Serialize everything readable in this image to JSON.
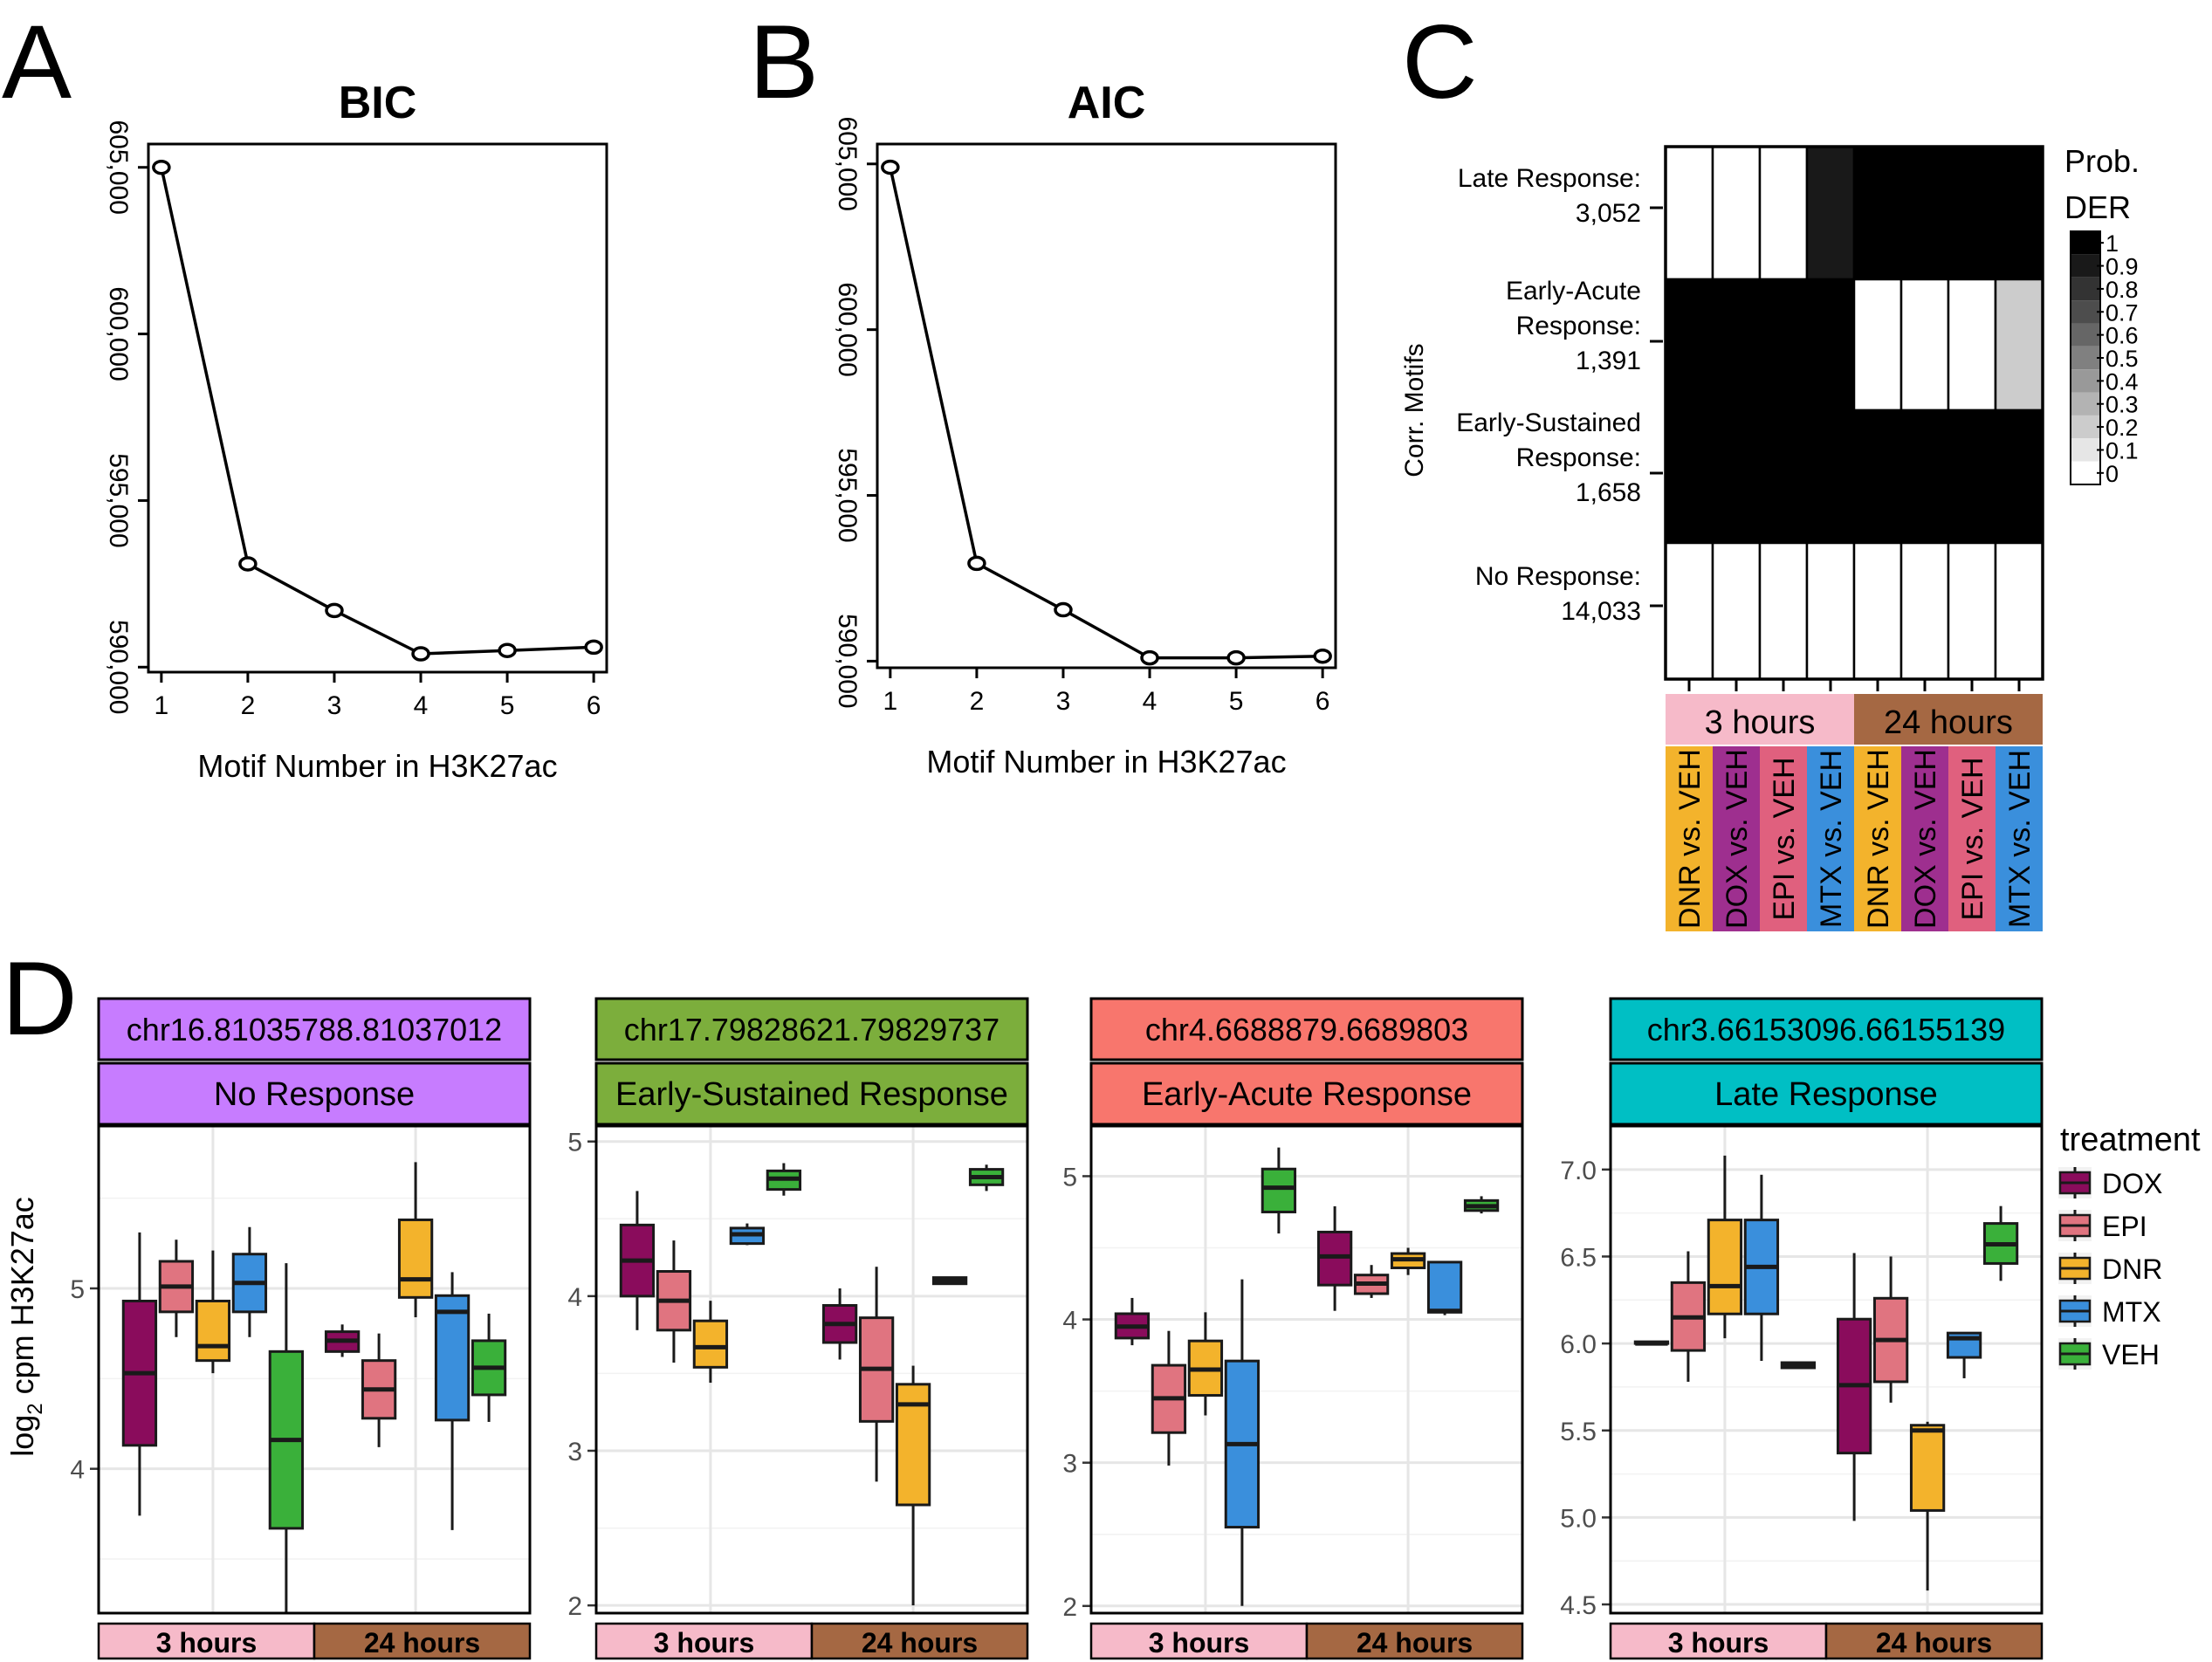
{
  "panels": {
    "A": {
      "letter": "A"
    },
    "B": {
      "letter": "B"
    },
    "C": {
      "letter": "C"
    },
    "D": {
      "letter": "D"
    }
  },
  "chart_data": [
    {
      "id": "A",
      "type": "line",
      "title": "BIC",
      "xlabel": "Motif Number in H3K27ac",
      "ylabel": "",
      "x": [
        1,
        2,
        3,
        4,
        5,
        6
      ],
      "y": [
        605000,
        593100,
        591700,
        590400,
        590500,
        590600
      ],
      "xticks": [
        "1",
        "2",
        "3",
        "4",
        "5",
        "6"
      ],
      "yticks": [
        590000,
        595000,
        600000,
        605000
      ],
      "ytick_labels": [
        "590,000",
        "595,000",
        "600,000",
        "605,000"
      ],
      "xlim": [
        0.85,
        6.15
      ],
      "ylim": [
        589850,
        605700
      ],
      "grid": false
    },
    {
      "id": "B",
      "type": "line",
      "title": "AIC",
      "xlabel": "Motif Number in H3K27ac",
      "ylabel": "",
      "x": [
        1,
        2,
        3,
        4,
        5,
        6
      ],
      "y": [
        604900,
        592950,
        591550,
        590100,
        590100,
        590150
      ],
      "xticks": [
        "1",
        "2",
        "3",
        "4",
        "5",
        "6"
      ],
      "yticks": [
        590000,
        595000,
        600000,
        605000
      ],
      "ytick_labels": [
        "590,000",
        "595,000",
        "600,000",
        "605,000"
      ],
      "xlim": [
        0.85,
        6.15
      ],
      "ylim": [
        589800,
        605600
      ],
      "grid": false
    },
    {
      "id": "C",
      "type": "heatmap",
      "ylabel": "Corr. Motifs",
      "row_labels": [
        [
          "Late Response:",
          "3,052"
        ],
        [
          "Early-Acute",
          "Response:",
          "1,391"
        ],
        [
          "Early-Sustained",
          "Response:",
          "1,658"
        ],
        [
          "No Response:",
          "14,033"
        ]
      ],
      "columns": [
        "DNR vs. VEH",
        "DOX vs. VEH",
        "EPI vs. VEH",
        "MTX vs. VEH",
        "DNR vs. VEH",
        "DOX vs. VEH",
        "EPI vs. VEH",
        "MTX vs. VEH"
      ],
      "column_colors": [
        "#f3b32c",
        "#9e2f8f",
        "#e0607e",
        "#3a8fdc",
        "#f3b32c",
        "#9e2f8f",
        "#e0607e",
        "#3a8fdc"
      ],
      "time_groups": [
        {
          "label": "3 hours",
          "span": 4,
          "color": "#f6bac9"
        },
        {
          "label": "24 hours",
          "span": 4,
          "color": "#a56843"
        }
      ],
      "values": [
        [
          0,
          0,
          0,
          0.9,
          1,
          1,
          1,
          1
        ],
        [
          1,
          1,
          1,
          1,
          0,
          0,
          0,
          0.2
        ],
        [
          1,
          1,
          1,
          1,
          1,
          1,
          1,
          1
        ],
        [
          0,
          0,
          0,
          0,
          0,
          0,
          0,
          0
        ]
      ],
      "legend": {
        "title_lines": [
          "Prob.",
          "DER"
        ],
        "ticks": [
          "1",
          "0.9",
          "0.8",
          "0.7",
          "0.6",
          "0.5",
          "0.4",
          "0.3",
          "0.2",
          "0.1",
          "0"
        ]
      }
    },
    {
      "id": "D",
      "type": "box",
      "ylabel": "log2 cpm H3K27ac",
      "groups": [
        "3 hours",
        "24 hours"
      ],
      "group_colors": [
        "#f6bac9",
        "#a56843"
      ],
      "treatments": [
        "DOX",
        "EPI",
        "DNR",
        "MTX",
        "VEH"
      ],
      "treatment_colors": [
        "#8a0c5c",
        "#e07480",
        "#f3b32c",
        "#3a8fdc",
        "#3ab03a"
      ],
      "legend": {
        "title": "treatment",
        "placement": "right"
      },
      "panels": [
        {
          "region": "chr16.81035788.81037012",
          "response": "No Response",
          "header_color": "#c77cff",
          "ylim": [
            3.2,
            5.9
          ],
          "yticks": [
            4,
            5
          ],
          "minor_yticks": [
            3.5,
            4.5,
            5.5
          ],
          "boxes": {
            "3 hours": [
              {
                "min": 3.74,
                "q1": 4.13,
                "median": 4.53,
                "q3": 4.93,
                "max": 5.31
              },
              {
                "min": 4.73,
                "q1": 4.87,
                "median": 5.01,
                "q3": 5.15,
                "max": 5.27
              },
              {
                "min": 4.53,
                "q1": 4.6,
                "median": 4.68,
                "q3": 4.93,
                "max": 5.21
              },
              {
                "min": 4.73,
                "q1": 4.87,
                "median": 5.03,
                "q3": 5.19,
                "max": 5.34
              },
              {
                "min": 3.2,
                "q1": 3.67,
                "median": 4.16,
                "q3": 4.65,
                "max": 5.14
              }
            ],
            "24 hours": [
              {
                "min": 4.62,
                "q1": 4.65,
                "median": 4.71,
                "q3": 4.76,
                "max": 4.8
              },
              {
                "min": 4.12,
                "q1": 4.28,
                "median": 4.44,
                "q3": 4.6,
                "max": 4.75
              },
              {
                "min": 4.84,
                "q1": 4.95,
                "median": 5.05,
                "q3": 5.38,
                "max": 5.7
              },
              {
                "min": 3.66,
                "q1": 4.27,
                "median": 4.87,
                "q3": 4.96,
                "max": 5.09
              },
              {
                "min": 4.26,
                "q1": 4.41,
                "median": 4.56,
                "q3": 4.71,
                "max": 4.86
              }
            ]
          }
        },
        {
          "region": "chr17.79828621.79829737",
          "response": "Early-Sustained Response",
          "header_color": "#7cae3c",
          "ylim": [
            1.95,
            5.1
          ],
          "yticks": [
            2,
            3,
            4,
            5
          ],
          "minor_yticks": [
            2.5,
            3.5,
            4.5
          ],
          "boxes": {
            "3 hours": [
              {
                "min": 3.78,
                "q1": 4.0,
                "median": 4.23,
                "q3": 4.46,
                "max": 4.68
              },
              {
                "min": 3.57,
                "q1": 3.78,
                "median": 3.97,
                "q3": 4.16,
                "max": 4.36
              },
              {
                "min": 3.44,
                "q1": 3.54,
                "median": 3.67,
                "q3": 3.84,
                "max": 3.97
              },
              {
                "min": 4.33,
                "q1": 4.34,
                "median": 4.4,
                "q3": 4.44,
                "max": 4.47
              },
              {
                "min": 4.65,
                "q1": 4.69,
                "median": 4.76,
                "q3": 4.81,
                "max": 4.86
              }
            ],
            "24 hours": [
              {
                "min": 3.59,
                "q1": 3.7,
                "median": 3.82,
                "q3": 3.94,
                "max": 4.05
              },
              {
                "min": 2.8,
                "q1": 3.19,
                "median": 3.53,
                "q3": 3.86,
                "max": 4.19
              },
              {
                "min": 2.0,
                "q1": 2.65,
                "median": 3.3,
                "q3": 3.43,
                "max": 3.55
              },
              {
                "min": 4.08,
                "q1": 4.08,
                "median": 4.1,
                "q3": 4.12,
                "max": 4.12
              },
              {
                "min": 4.68,
                "q1": 4.72,
                "median": 4.77,
                "q3": 4.82,
                "max": 4.85
              }
            ]
          }
        },
        {
          "region": "chr4.6688879.6689803",
          "response": "Early-Acute Response",
          "header_color": "#f8766d",
          "ylim": [
            1.95,
            5.35
          ],
          "yticks": [
            2,
            3,
            4,
            5
          ],
          "minor_yticks": [
            2.5,
            3.5,
            4.5
          ],
          "boxes": {
            "3 hours": [
              {
                "min": 3.82,
                "q1": 3.87,
                "median": 3.95,
                "q3": 4.04,
                "max": 4.15
              },
              {
                "min": 2.98,
                "q1": 3.21,
                "median": 3.45,
                "q3": 3.68,
                "max": 3.92
              },
              {
                "min": 3.33,
                "q1": 3.47,
                "median": 3.65,
                "q3": 3.85,
                "max": 4.05
              },
              {
                "min": 2.0,
                "q1": 2.55,
                "median": 3.13,
                "q3": 3.71,
                "max": 4.28
              },
              {
                "min": 4.6,
                "q1": 4.75,
                "median": 4.92,
                "q3": 5.05,
                "max": 5.2
              }
            ],
            "24 hours": [
              {
                "min": 4.06,
                "q1": 4.24,
                "median": 4.44,
                "q3": 4.61,
                "max": 4.79
              },
              {
                "min": 4.15,
                "q1": 4.18,
                "median": 4.25,
                "q3": 4.31,
                "max": 4.38
              },
              {
                "min": 4.31,
                "q1": 4.36,
                "median": 4.42,
                "q3": 4.46,
                "max": 4.5
              },
              {
                "min": 4.03,
                "q1": 4.05,
                "median": 4.06,
                "q3": 4.4,
                "max": 4.4
              },
              {
                "min": 4.74,
                "q1": 4.76,
                "median": 4.79,
                "q3": 4.83,
                "max": 4.86
              }
            ]
          }
        },
        {
          "region": "chr3.66153096.66155139",
          "response": "Late Response",
          "header_color": "#00bfc4",
          "ylim": [
            4.45,
            7.25
          ],
          "yticks": [
            4.5,
            5.0,
            5.5,
            6.0,
            6.5,
            7.0
          ],
          "ytick_labels": [
            "4.5",
            "5.0",
            "5.5",
            "6.0",
            "6.5",
            "7.0"
          ],
          "minor_yticks": [
            4.75,
            5.25,
            5.75,
            6.25,
            6.75
          ],
          "boxes": {
            "3 hours": [
              {
                "min": 6.0,
                "q1": 6.0,
                "median": 6.0,
                "q3": 6.01,
                "max": 6.01
              },
              {
                "min": 5.78,
                "q1": 5.96,
                "median": 6.15,
                "q3": 6.35,
                "max": 6.53
              },
              {
                "min": 6.03,
                "q1": 6.17,
                "median": 6.33,
                "q3": 6.71,
                "max": 7.08
              },
              {
                "min": 5.9,
                "q1": 6.17,
                "median": 6.44,
                "q3": 6.71,
                "max": 6.97
              },
              {
                "min": 5.86,
                "q1": 5.86,
                "median": 5.88,
                "q3": 5.89,
                "max": 5.89
              }
            ],
            "24 hours": [
              {
                "min": 4.98,
                "q1": 5.37,
                "median": 5.76,
                "q3": 6.14,
                "max": 6.52
              },
              {
                "min": 5.66,
                "q1": 5.78,
                "median": 6.02,
                "q3": 6.26,
                "max": 6.5
              },
              {
                "min": 4.58,
                "q1": 5.04,
                "median": 5.5,
                "q3": 5.53,
                "max": 5.55
              },
              {
                "min": 5.8,
                "q1": 5.92,
                "median": 6.03,
                "q3": 6.06,
                "max": 6.06
              },
              {
                "min": 6.36,
                "q1": 6.46,
                "median": 6.57,
                "q3": 6.69,
                "max": 6.79
              }
            ]
          }
        }
      ]
    }
  ]
}
